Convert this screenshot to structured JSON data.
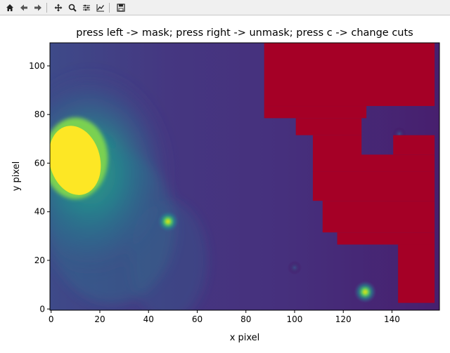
{
  "toolbar": {
    "buttons": [
      {
        "name": "home-icon"
      },
      {
        "name": "back-icon"
      },
      {
        "name": "forward-icon"
      },
      {
        "sep": true
      },
      {
        "name": "pan-icon"
      },
      {
        "name": "zoom-icon"
      },
      {
        "name": "configure-subplots-icon"
      },
      {
        "name": "edit-axis-icon"
      },
      {
        "sep": true
      },
      {
        "name": "save-icon"
      }
    ]
  },
  "chart_data": {
    "type": "heatmap",
    "title": "press left -> mask; press right -> unmask; press c -> change cuts",
    "xlabel": "x pixel",
    "ylabel": "y pixel",
    "xlim": [
      -0.5,
      159.5
    ],
    "ylim": [
      -0.5,
      109.5
    ],
    "xticks": [
      "0",
      "20",
      "40",
      "60",
      "80",
      "100",
      "120",
      "140"
    ],
    "yticks": [
      "0",
      "20",
      "40",
      "60",
      "80",
      "100"
    ],
    "colormap": "viridis",
    "mask_color": "#a50026",
    "sources": [
      {
        "x": 10,
        "y": 62,
        "intensity": 1.0,
        "note": "bright elliptical source, saturated"
      },
      {
        "x": 48,
        "y": 36,
        "intensity": 0.55
      },
      {
        "x": 129,
        "y": 7,
        "intensity": 0.5
      },
      {
        "x": 143,
        "y": 72,
        "intensity": 0.12
      },
      {
        "x": 100,
        "y": 17,
        "intensity": 0.08
      }
    ],
    "masked_region_rows": [
      {
        "y0": 0,
        "y1": 1,
        "x0": 0,
        "x1": 0
      },
      {
        "y0": 3,
        "y1": 26,
        "x0": 143,
        "x1": 157
      },
      {
        "y0": 27,
        "y1": 31,
        "x0": 118,
        "x1": 157
      },
      {
        "y0": 32,
        "y1": 44,
        "x0": 112,
        "x1": 157
      },
      {
        "y0": 45,
        "y1": 56,
        "x0": 108,
        "x1": 157
      },
      {
        "y0": 57,
        "y1": 71,
        "x0": 108,
        "x1": 127
      },
      {
        "y0": 57,
        "y1": 63,
        "x0": 127,
        "x1": 157
      },
      {
        "y0": 64,
        "y1": 71,
        "x0": 141,
        "x1": 157
      },
      {
        "y0": 72,
        "y1": 78,
        "x0": 101,
        "x1": 127
      },
      {
        "y0": 79,
        "y1": 83,
        "x0": 88,
        "x1": 129
      },
      {
        "y0": 84,
        "y1": 109,
        "x0": 88,
        "x1": 157
      }
    ]
  }
}
